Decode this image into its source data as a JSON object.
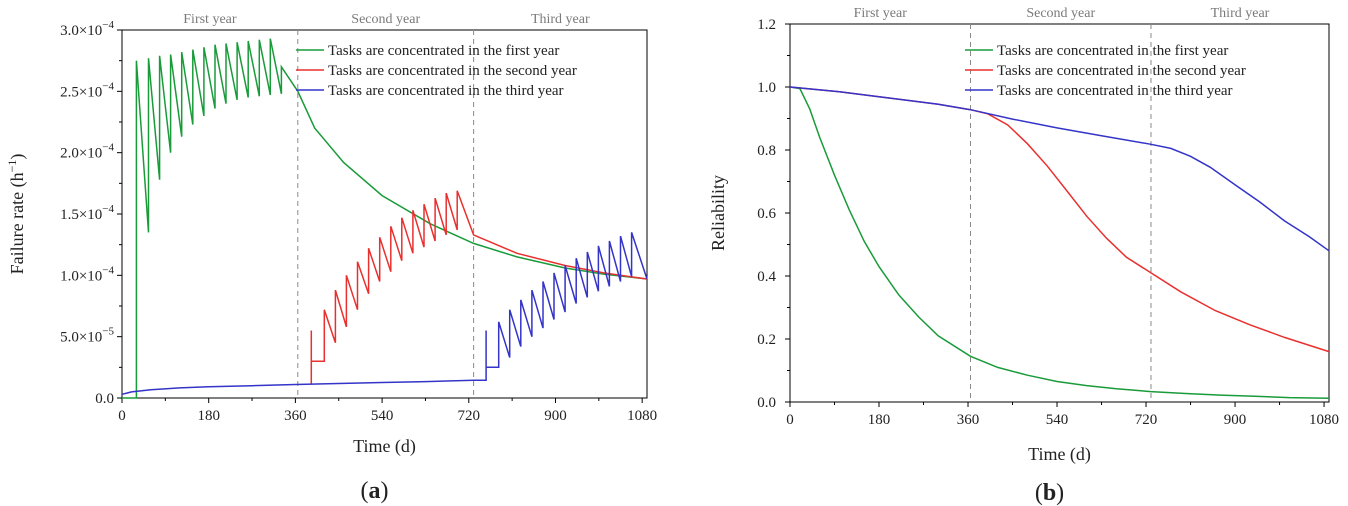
{
  "chart_data": [
    {
      "panel_id": "a",
      "panel_label": "a",
      "type": "line",
      "xlabel": "Time (d)",
      "ylabel_main": "Failure rate (h",
      "ylabel_sup": "−1",
      "ylabel_close": ")",
      "xlim": [
        0,
        1090
      ],
      "ylim": [
        0,
        0.0003
      ],
      "xticks": [
        0,
        180,
        360,
        540,
        720,
        900,
        1080
      ],
      "xtick_labels": [
        "0",
        "180",
        "360",
        "540",
        "720",
        "900",
        "1080"
      ],
      "yticks": [
        0,
        5e-05,
        0.0001,
        0.00015,
        0.0002,
        0.00025,
        0.0003
      ],
      "ytick_labels": [
        {
          "mant": "0.0",
          "exp": ""
        },
        {
          "mant": "5.0×10",
          "exp": "−5"
        },
        {
          "mant": "1.0×10",
          "exp": "−4"
        },
        {
          "mant": "1.5×10",
          "exp": "−4"
        },
        {
          "mant": "2.0×10",
          "exp": "−4"
        },
        {
          "mant": "2.5×10",
          "exp": "−4"
        },
        {
          "mant": "3.0×10",
          "exp": "−4"
        }
      ],
      "vlines": [
        365,
        730
      ],
      "year_labels": [
        "First year",
        "Second year",
        "Third year"
      ],
      "legend_position": "top-right",
      "series": [
        {
          "name": "Tasks are concentrated in the first year",
          "color": "#1a9b3a",
          "x": [
            0,
            30,
            30,
            55,
            55,
            78,
            78,
            101,
            101,
            124,
            124,
            147,
            147,
            170,
            170,
            193,
            193,
            216,
            216,
            239,
            239,
            262,
            262,
            285,
            285,
            308,
            308,
            331,
            331,
            365,
            400,
            460,
            540,
            640,
            730,
            820,
            920,
            1000,
            1090
          ],
          "y": [
            0,
            0,
            0.000275,
            0.000135,
            0.000277,
            0.000178,
            0.000279,
            0.0002,
            0.00028,
            0.000213,
            0.000282,
            0.000223,
            0.000284,
            0.00023,
            0.000286,
            0.000236,
            0.000288,
            0.00024,
            0.000289,
            0.000243,
            0.00029,
            0.000245,
            0.000291,
            0.000246,
            0.000292,
            0.000247,
            0.000293,
            0.000248,
            0.00027,
            0.00025,
            0.00022,
            0.000192,
            0.000165,
            0.000142,
            0.000126,
            0.000115,
            0.000106,
            0.000101,
            9.7e-05
          ]
        },
        {
          "name": "Tasks are concentrated in the second year",
          "color": "#e8312f",
          "x": [
            393,
            393,
            393,
            420,
            420,
            443,
            443,
            466,
            466,
            489,
            489,
            512,
            512,
            535,
            535,
            558,
            558,
            581,
            581,
            604,
            604,
            627,
            627,
            650,
            650,
            673,
            673,
            696,
            696,
            730,
            820,
            920,
            1000,
            1090
          ],
          "y": [
            1.1e-05,
            5.5e-05,
            3e-05,
            3e-05,
            7.2e-05,
            4.5e-05,
            8.8e-05,
            5.8e-05,
            0.0001,
            7.2e-05,
            0.000111,
            8.5e-05,
            0.000122,
            9.5e-05,
            0.000131,
            0.000103,
            0.00014,
            0.000112,
            0.000147,
            0.000118,
            0.000153,
            0.000123,
            0.000158,
            0.000128,
            0.000163,
            0.000133,
            0.000167,
            0.000137,
            0.000169,
            0.000133,
            0.000118,
            0.000108,
            0.000102,
            9.7e-05
          ]
        },
        {
          "name": "Tasks are concentrated in the third year",
          "color": "#3434c8",
          "x": [
            0,
            20,
            60,
            120,
            180,
            270,
            360,
            450,
            540,
            630,
            730,
            756,
            756,
            756,
            782,
            782,
            805,
            805,
            828,
            828,
            851,
            851,
            874,
            874,
            897,
            897,
            920,
            920,
            943,
            943,
            966,
            966,
            989,
            989,
            1012,
            1012,
            1035,
            1035,
            1058,
            1058,
            1090
          ],
          "y": [
            3e-06,
            5e-06,
            6.8e-06,
            8.2e-06,
            9.2e-06,
            1e-05,
            1.1e-05,
            1.18e-05,
            1.26e-05,
            1.34e-05,
            1.45e-05,
            1.45e-05,
            5.5e-05,
            2.5e-05,
            2.5e-05,
            6.2e-05,
            3.3e-05,
            7.2e-05,
            4.2e-05,
            8e-05,
            5e-05,
            8.8e-05,
            5.7e-05,
            9.5e-05,
            6.4e-05,
            0.000102,
            7e-05,
            0.000108,
            7.7e-05,
            0.000114,
            8.2e-05,
            0.000119,
            8.7e-05,
            0.000124,
            9.1e-05,
            0.000128,
            9.5e-05,
            0.000132,
            9.9e-05,
            0.000135,
            9.7e-05
          ]
        }
      ]
    },
    {
      "panel_id": "b",
      "panel_label": "b",
      "type": "line",
      "xlabel": "Time (d)",
      "ylabel": "Reliability",
      "xlim": [
        0,
        1090
      ],
      "ylim": [
        0,
        1.2
      ],
      "xticks": [
        0,
        180,
        360,
        540,
        720,
        900,
        1080
      ],
      "xtick_labels": [
        "0",
        "180",
        "360",
        "540",
        "720",
        "900",
        "1080"
      ],
      "yticks": [
        0,
        0.2,
        0.4,
        0.6,
        0.8,
        1.0,
        1.2
      ],
      "ytick_labels": [
        "0.0",
        "0.2",
        "0.4",
        "0.6",
        "0.8",
        "1.0",
        "1.2"
      ],
      "vlines": [
        365,
        730
      ],
      "year_labels": [
        "First year",
        "Second year",
        "Third year"
      ],
      "legend_position": "top-right",
      "series": [
        {
          "name": "Tasks are concentrated in the first year",
          "color": "#1a9b3a",
          "x": [
            0,
            20,
            40,
            60,
            90,
            120,
            150,
            180,
            220,
            260,
            300,
            365,
            420,
            480,
            540,
            600,
            660,
            730,
            800,
            870,
            940,
            1010,
            1090
          ],
          "y": [
            1.0,
            0.995,
            0.93,
            0.84,
            0.72,
            0.61,
            0.51,
            0.43,
            0.34,
            0.27,
            0.21,
            0.145,
            0.11,
            0.085,
            0.065,
            0.052,
            0.042,
            0.033,
            0.027,
            0.022,
            0.018,
            0.014,
            0.012
          ]
        },
        {
          "name": "Tasks are concentrated in the second year",
          "color": "#e8312f",
          "x": [
            0,
            100,
            200,
            300,
            365,
            400,
            440,
            480,
            520,
            560,
            600,
            640,
            680,
            730,
            790,
            860,
            930,
            1000,
            1090
          ],
          "y": [
            1.0,
            0.985,
            0.965,
            0.945,
            0.928,
            0.915,
            0.88,
            0.82,
            0.75,
            0.67,
            0.59,
            0.52,
            0.46,
            0.41,
            0.35,
            0.29,
            0.245,
            0.205,
            0.16
          ]
        },
        {
          "name": "Tasks are concentrated in the third year",
          "color": "#3434c8",
          "x": [
            0,
            100,
            200,
            300,
            365,
            450,
            540,
            630,
            730,
            770,
            810,
            850,
            900,
            950,
            1000,
            1050,
            1090
          ],
          "y": [
            1.0,
            0.985,
            0.965,
            0.945,
            0.928,
            0.898,
            0.87,
            0.845,
            0.818,
            0.805,
            0.78,
            0.745,
            0.69,
            0.635,
            0.575,
            0.525,
            0.48
          ]
        }
      ]
    }
  ]
}
